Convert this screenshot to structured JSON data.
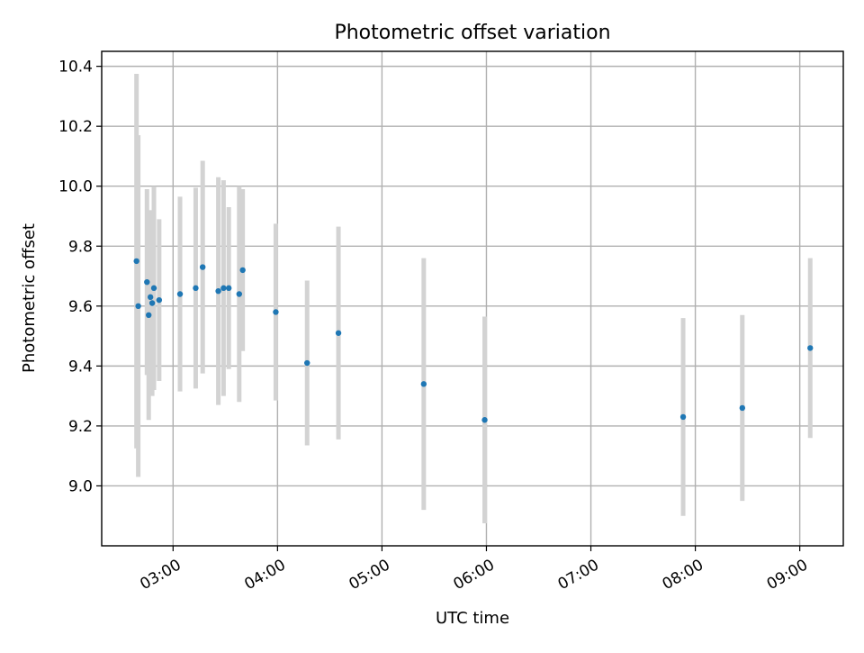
{
  "chart_data": {
    "type": "scatter",
    "title": "Photometric offset variation",
    "xlabel": "UTC time",
    "ylabel": "Photometric offset",
    "xlim": [
      "02:19",
      "09:25"
    ],
    "ylim": [
      8.8,
      10.45
    ],
    "xticks": [
      "03:00",
      "04:00",
      "05:00",
      "06:00",
      "07:00",
      "08:00",
      "09:00"
    ],
    "yticks": [
      9.0,
      9.2,
      9.4,
      9.6,
      9.8,
      10.0,
      10.2,
      10.4
    ],
    "ytick_labels": [
      "9.0",
      "9.2",
      "9.4",
      "9.6",
      "9.8",
      "10.0",
      "10.2",
      "10.4"
    ],
    "grid": true,
    "xtick_rotation_deg": 30,
    "colors": {
      "point": "#1f77b4",
      "errorbar": "#d3d3d3",
      "grid": "#b0b0b0"
    },
    "points": [
      {
        "x": "02:39",
        "y": 9.75,
        "yerr": 0.625
      },
      {
        "x": "02:40",
        "y": 9.6,
        "yerr": 0.57
      },
      {
        "x": "02:45",
        "y": 9.68,
        "yerr": 0.31
      },
      {
        "x": "02:46",
        "y": 9.57,
        "yerr": 0.35
      },
      {
        "x": "02:47",
        "y": 9.63,
        "yerr": 0.28
      },
      {
        "x": "02:48",
        "y": 9.61,
        "yerr": 0.31
      },
      {
        "x": "02:49",
        "y": 9.66,
        "yerr": 0.34
      },
      {
        "x": "02:52",
        "y": 9.62,
        "yerr": 0.27
      },
      {
        "x": "03:04",
        "y": 9.64,
        "yerr": 0.325
      },
      {
        "x": "03:13",
        "y": 9.66,
        "yerr": 0.335
      },
      {
        "x": "03:17",
        "y": 9.73,
        "yerr": 0.355
      },
      {
        "x": "03:26",
        "y": 9.65,
        "yerr": 0.38
      },
      {
        "x": "03:29",
        "y": 9.66,
        "yerr": 0.36
      },
      {
        "x": "03:32",
        "y": 9.66,
        "yerr": 0.27
      },
      {
        "x": "03:38",
        "y": 9.64,
        "yerr": 0.36
      },
      {
        "x": "03:40",
        "y": 9.72,
        "yerr": 0.27
      },
      {
        "x": "03:59",
        "y": 9.58,
        "yerr": 0.295
      },
      {
        "x": "04:17",
        "y": 9.41,
        "yerr": 0.275
      },
      {
        "x": "04:35",
        "y": 9.51,
        "yerr": 0.355
      },
      {
        "x": "05:24",
        "y": 9.34,
        "yerr": 0.42
      },
      {
        "x": "05:59",
        "y": 9.22,
        "yerr": 0.345
      },
      {
        "x": "07:53",
        "y": 9.23,
        "yerr": 0.33
      },
      {
        "x": "08:27",
        "y": 9.26,
        "yerr": 0.31
      },
      {
        "x": "09:06",
        "y": 9.46,
        "yerr": 0.3
      }
    ]
  }
}
